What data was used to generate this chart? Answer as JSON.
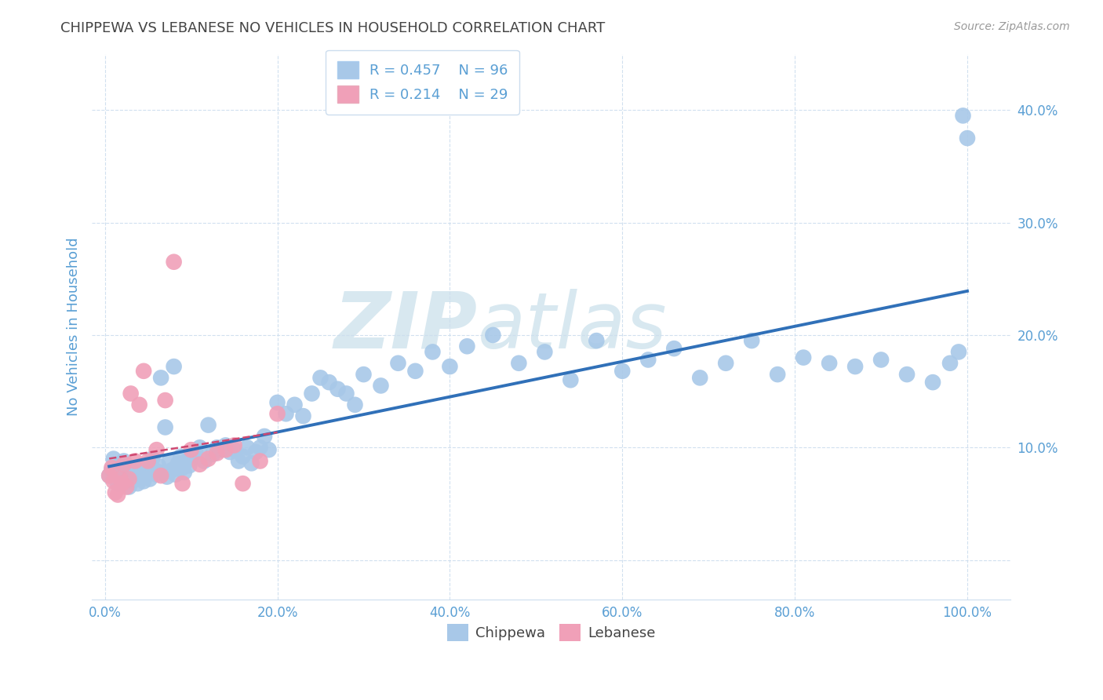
{
  "title": "CHIPPEWA VS LEBANESE NO VEHICLES IN HOUSEHOLD CORRELATION CHART",
  "source": "Source: ZipAtlas.com",
  "xlabel_ticks": [
    "0.0%",
    "20.0%",
    "40.0%",
    "60.0%",
    "80.0%",
    "100.0%"
  ],
  "xlabel_vals": [
    0.0,
    0.2,
    0.4,
    0.6,
    0.8,
    1.0
  ],
  "ylabel_ticks": [
    "",
    "10.0%",
    "20.0%",
    "30.0%",
    "40.0%"
  ],
  "ylabel_vals": [
    0.0,
    0.1,
    0.2,
    0.3,
    0.4
  ],
  "ylabel_label": "No Vehicles in Household",
  "xlim": [
    -0.015,
    1.05
  ],
  "ylim": [
    -0.035,
    0.45
  ],
  "chippewa_R": 0.457,
  "chippewa_N": 96,
  "lebanese_R": 0.214,
  "lebanese_N": 29,
  "chippewa_color": "#a8c8e8",
  "chippewa_line_color": "#3070b8",
  "lebanese_color": "#f0a0b8",
  "lebanese_line_color": "#d04870",
  "background_color": "#ffffff",
  "watermark_zip": "ZIP",
  "watermark_atlas": "atlas",
  "watermark_color": "#d8e8f0",
  "chippewa_x": [
    0.005,
    0.008,
    0.01,
    0.012,
    0.015,
    0.018,
    0.02,
    0.022,
    0.025,
    0.028,
    0.03,
    0.032,
    0.035,
    0.038,
    0.04,
    0.042,
    0.045,
    0.048,
    0.05,
    0.052,
    0.055,
    0.058,
    0.06,
    0.062,
    0.065,
    0.068,
    0.07,
    0.072,
    0.075,
    0.078,
    0.08,
    0.082,
    0.085,
    0.088,
    0.09,
    0.092,
    0.095,
    0.098,
    0.1,
    0.105,
    0.11,
    0.115,
    0.12,
    0.125,
    0.13,
    0.135,
    0.14,
    0.145,
    0.15,
    0.155,
    0.16,
    0.165,
    0.17,
    0.175,
    0.18,
    0.185,
    0.19,
    0.2,
    0.21,
    0.22,
    0.23,
    0.24,
    0.25,
    0.26,
    0.27,
    0.28,
    0.29,
    0.3,
    0.32,
    0.34,
    0.36,
    0.38,
    0.4,
    0.42,
    0.45,
    0.48,
    0.51,
    0.54,
    0.57,
    0.6,
    0.63,
    0.66,
    0.69,
    0.72,
    0.75,
    0.78,
    0.81,
    0.84,
    0.87,
    0.9,
    0.93,
    0.96,
    0.98,
    0.99,
    0.995,
    1.0
  ],
  "chippewa_y": [
    0.075,
    0.08,
    0.09,
    0.078,
    0.068,
    0.085,
    0.072,
    0.088,
    0.075,
    0.065,
    0.08,
    0.07,
    0.082,
    0.068,
    0.076,
    0.084,
    0.07,
    0.078,
    0.085,
    0.072,
    0.09,
    0.08,
    0.076,
    0.084,
    0.162,
    0.078,
    0.118,
    0.074,
    0.088,
    0.08,
    0.172,
    0.076,
    0.086,
    0.092,
    0.082,
    0.078,
    0.088,
    0.084,
    0.09,
    0.096,
    0.1,
    0.088,
    0.12,
    0.094,
    0.1,
    0.098,
    0.102,
    0.096,
    0.098,
    0.088,
    0.092,
    0.1,
    0.086,
    0.096,
    0.1,
    0.11,
    0.098,
    0.14,
    0.13,
    0.138,
    0.128,
    0.148,
    0.162,
    0.158,
    0.152,
    0.148,
    0.138,
    0.165,
    0.155,
    0.175,
    0.168,
    0.185,
    0.172,
    0.19,
    0.2,
    0.175,
    0.185,
    0.16,
    0.195,
    0.168,
    0.178,
    0.188,
    0.162,
    0.175,
    0.195,
    0.165,
    0.18,
    0.175,
    0.172,
    0.178,
    0.165,
    0.158,
    0.175,
    0.185,
    0.395,
    0.375
  ],
  "lebanese_x": [
    0.005,
    0.008,
    0.01,
    0.012,
    0.015,
    0.018,
    0.02,
    0.022,
    0.025,
    0.028,
    0.03,
    0.035,
    0.04,
    0.045,
    0.05,
    0.06,
    0.065,
    0.07,
    0.08,
    0.09,
    0.1,
    0.11,
    0.12,
    0.13,
    0.14,
    0.15,
    0.16,
    0.18,
    0.2
  ],
  "lebanese_y": [
    0.075,
    0.082,
    0.07,
    0.06,
    0.058,
    0.072,
    0.068,
    0.085,
    0.065,
    0.072,
    0.148,
    0.088,
    0.138,
    0.168,
    0.088,
    0.098,
    0.075,
    0.142,
    0.265,
    0.068,
    0.098,
    0.085,
    0.09,
    0.095,
    0.098,
    0.102,
    0.068,
    0.088,
    0.13
  ]
}
